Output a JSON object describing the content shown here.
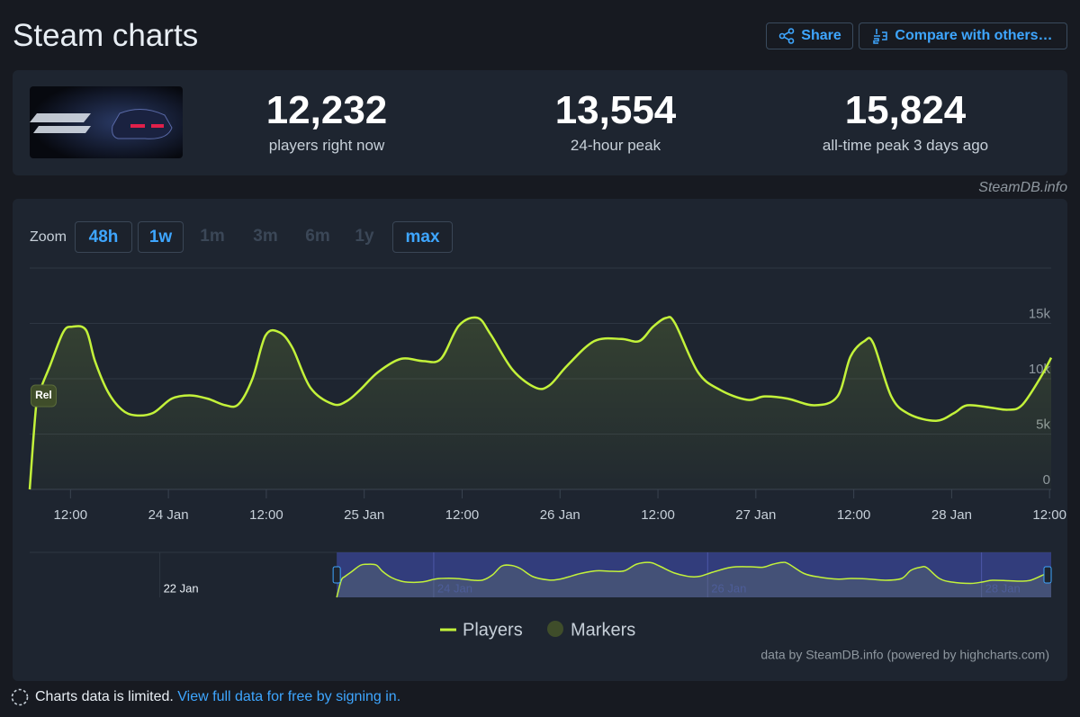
{
  "header": {
    "title": "Steam charts",
    "buttons": [
      "Share",
      "Compare with others…"
    ]
  },
  "stats": [
    {
      "value": "12,232",
      "label": "players right now"
    },
    {
      "value": "13,554",
      "label": "24-hour peak"
    },
    {
      "value": "15,824",
      "label": "all-time peak 3 days ago"
    }
  ],
  "source": "SteamDB.info",
  "zoom": {
    "label": "Zoom",
    "buttons": [
      {
        "label": "48h",
        "enabled": true
      },
      {
        "label": "1w",
        "enabled": true
      },
      {
        "label": "1m",
        "enabled": false
      },
      {
        "label": "3m",
        "enabled": false
      },
      {
        "label": "6m",
        "enabled": false
      },
      {
        "label": "1y",
        "enabled": false
      },
      {
        "label": "max",
        "enabled": true
      }
    ]
  },
  "chart_data": {
    "type": "line",
    "x": [
      7,
      7.8,
      8.4,
      9.5,
      11.1,
      12.2,
      13.9,
      15,
      16.6,
      18.3,
      19.9,
      22.1,
      24.4,
      26.6,
      28.8,
      31,
      32.6,
      34.3,
      35.9,
      37.6,
      39.2,
      41.4,
      44.2,
      45.9,
      47.5,
      49.7,
      52.5,
      55.2,
      57.4,
      59.6,
      61.9,
      63.5,
      66.2,
      69,
      70.7,
      72.9,
      76.2,
      79.5,
      81.7,
      83.4,
      85,
      86.1,
      88.9,
      91.6,
      94.9,
      97.1,
      99.9,
      103.2,
      106,
      107.6,
      109.3,
      110.4,
      112.6,
      114.8,
      118.1,
      120.3,
      121.9,
      124.7,
      126.9,
      128.6,
      130.8,
      132.2
    ],
    "series": [
      {
        "name": "Players",
        "color": "#c3f23a",
        "values": [
          0,
          7600,
          9200,
          11200,
          14200,
          14700,
          14400,
          11600,
          8800,
          7200,
          6700,
          6900,
          8200,
          8500,
          8200,
          7600,
          7700,
          10000,
          13900,
          14200,
          12800,
          9200,
          7700,
          8000,
          9000,
          10600,
          11800,
          11600,
          11800,
          14800,
          15500,
          14000,
          10800,
          9200,
          9400,
          11200,
          13400,
          13600,
          13400,
          14700,
          15500,
          15000,
          10600,
          9000,
          8100,
          8400,
          8200,
          7600,
          8400,
          12000,
          13400,
          13200,
          8400,
          6800,
          6200,
          6900,
          7600,
          7400,
          7200,
          7600,
          10000,
          11900
        ]
      }
    ],
    "markers": {
      "name": "Markers",
      "color": "#3f4d2a",
      "items": [
        {
          "x": 8.7,
          "label": "Rel"
        }
      ]
    },
    "xlim": [
      7,
      132.2
    ],
    "xticks": [
      {
        "value": 12,
        "label": "12:00"
      },
      {
        "value": 24,
        "label": "24 Jan"
      },
      {
        "value": 36,
        "label": "12:00"
      },
      {
        "value": 48,
        "label": "25 Jan"
      },
      {
        "value": 60,
        "label": "12:00"
      },
      {
        "value": 72,
        "label": "26 Jan"
      },
      {
        "value": 84,
        "label": "12:00"
      },
      {
        "value": 96,
        "label": "27 Jan"
      },
      {
        "value": 108,
        "label": "12:00"
      },
      {
        "value": 120,
        "label": "28 Jan"
      },
      {
        "value": 132,
        "label": "12:00"
      }
    ],
    "ylim": [
      0,
      20000
    ],
    "yticks": [
      0,
      {
        "value": 5000,
        "label": "5k"
      },
      {
        "value": 10000,
        "label": "10k"
      },
      {
        "value": 15000,
        "label": "15k"
      }
    ],
    "grid": true,
    "navigator": {
      "xlim": [
        -46.8,
        132.2
      ],
      "xticks": [
        {
          "value": -24,
          "label": "22 Jan"
        },
        {
          "value": 24,
          "label": "24 Jan"
        },
        {
          "value": 72,
          "label": "26 Jan"
        },
        {
          "value": 120,
          "label": "28 Jan"
        }
      ]
    },
    "credits": "data by SteamDB.info (powered by highcharts.com)"
  },
  "footer": {
    "notice": "Charts data is limited.",
    "link": "View full data for free by signing in."
  }
}
